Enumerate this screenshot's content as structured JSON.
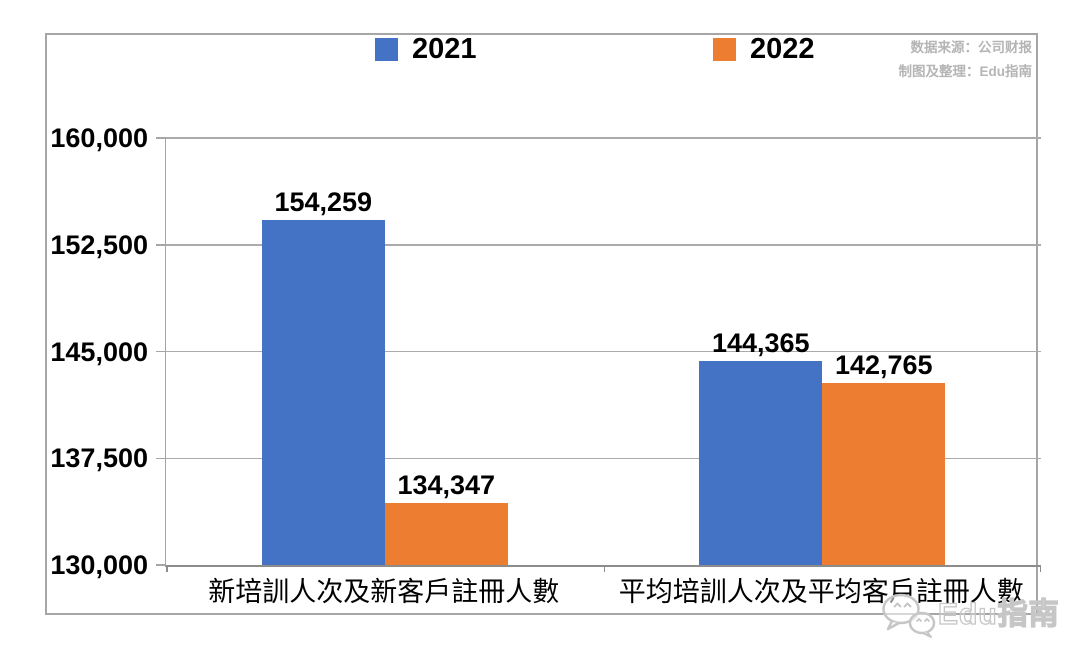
{
  "chart_data": {
    "type": "bar",
    "title": "",
    "categories": [
      "新培訓人次及新客戶註冊人數",
      "平均培訓人次及平均客戶註冊人數"
    ],
    "series": [
      {
        "name": "2021",
        "color": "#4472C4",
        "values": [
          154259,
          144365
        ],
        "labels": [
          "154,259",
          "144,365"
        ]
      },
      {
        "name": "2022",
        "color": "#ED7D31",
        "values": [
          134347,
          142765
        ],
        "labels": [
          "134,347",
          "142,765"
        ]
      }
    ],
    "ylim": [
      130000,
      160000
    ],
    "yticks": [
      130000,
      137500,
      145000,
      152500,
      160000
    ],
    "ytick_labels": [
      "130,000",
      "137,500",
      "145,000",
      "152,500",
      "160,000"
    ],
    "grid": true,
    "legend_position": "top-center",
    "xlabel": "",
    "ylabel": ""
  },
  "source_note": {
    "line1": "数据来源：公司财报",
    "line2": "制图及整理：Edu指南"
  },
  "watermark": {
    "icon": "wechat-icon",
    "text": "Edu指南"
  },
  "colors": {
    "series_2021": "#4472C4",
    "series_2022": "#ED7D31",
    "gridline": "#ababab",
    "axis": "#8c8c8c",
    "frame_border": "#a6a6a6",
    "source_text": "#b5b5b5",
    "watermark": "#c6c6c6",
    "label_text": "#000000",
    "background": "#ffffff"
  }
}
